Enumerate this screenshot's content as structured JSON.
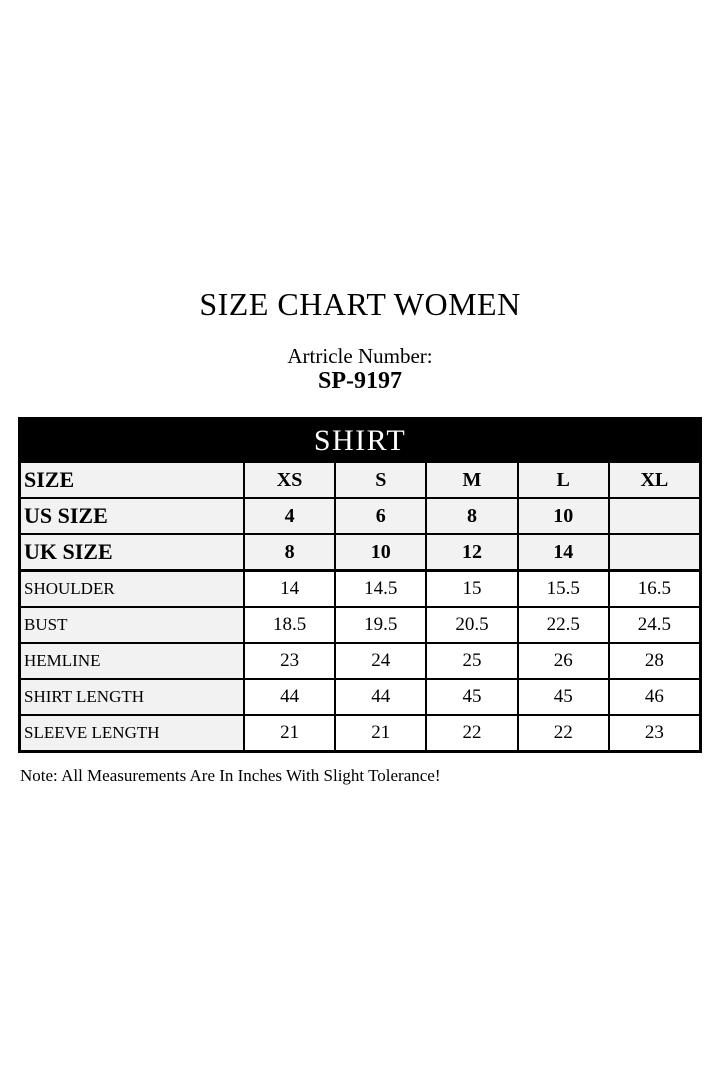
{
  "title": "SIZE CHART WOMEN",
  "article": {
    "label": "Artricle Number:",
    "number": "SP-9197"
  },
  "table": {
    "banner": "SHIRT",
    "header_row": {
      "label": "SIZE",
      "values": [
        "XS",
        "S",
        "M",
        "L",
        "XL"
      ]
    },
    "rows": [
      {
        "label": "US SIZE",
        "values": [
          "4",
          "6",
          "8",
          "10",
          ""
        ]
      },
      {
        "label": "UK SIZE",
        "values": [
          "8",
          "10",
          "12",
          "14",
          ""
        ]
      },
      {
        "label": "SHOULDER",
        "values": [
          "14",
          "14.5",
          "15",
          "15.5",
          "16.5"
        ]
      },
      {
        "label": "BUST",
        "values": [
          "18.5",
          "19.5",
          "20.5",
          "22.5",
          "24.5"
        ]
      },
      {
        "label": "HEMLINE",
        "values": [
          "23",
          "24",
          "25",
          "26",
          "28"
        ]
      },
      {
        "label": "SHIRT LENGTH",
        "values": [
          "44",
          "44",
          "45",
          "45",
          "46"
        ]
      },
      {
        "label": "SLEEVE LENGTH",
        "values": [
          "21",
          "21",
          "22",
          "22",
          "23"
        ]
      }
    ]
  },
  "note": "Note: All Measurements Are In Inches With Slight Tolerance!",
  "colors": {
    "banner_bg": "#000000",
    "banner_text": "#ffffff",
    "shaded_cell": "#f2f2f2",
    "border": "#000000",
    "text": "#000000",
    "page_bg": "#ffffff"
  }
}
